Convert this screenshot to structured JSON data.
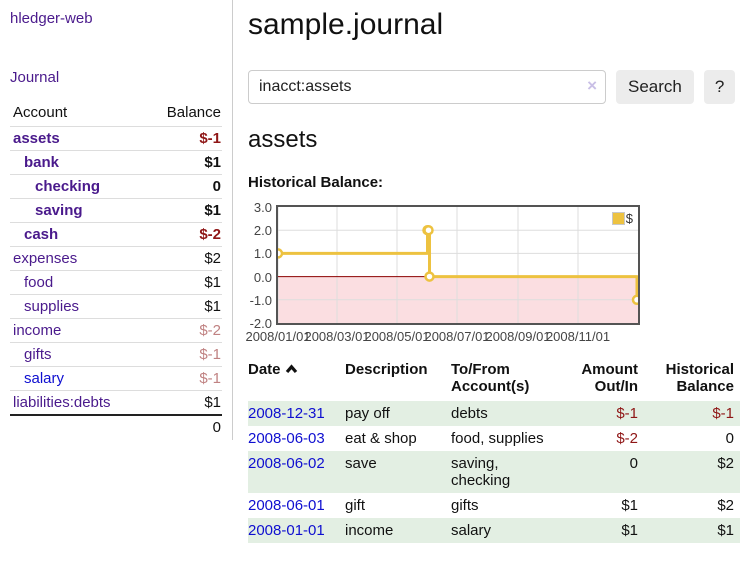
{
  "colors": {
    "accent_purple": "#4a1a8c",
    "link_blue": "#0f0fd0",
    "negative_red": "#8f1616",
    "negative_muted": "#c08282",
    "row_green": "#e3efe3",
    "chart_gold": "#edc240",
    "chart_negative_fill": "#fbdee1",
    "chart_zero_line": "#8b0000",
    "gridline": "#dddddd"
  },
  "sidebar": {
    "brand": "hledger-web",
    "nav_journal": "Journal",
    "accounts": {
      "header": {
        "account": "Account",
        "balance": "Balance"
      },
      "rows": [
        {
          "name": "assets",
          "balance": "$-1"
        },
        {
          "name": "bank",
          "balance": "$1"
        },
        {
          "name": "checking",
          "balance": "0"
        },
        {
          "name": "saving",
          "balance": "$1"
        },
        {
          "name": "cash",
          "balance": "$-2"
        },
        {
          "name": "expenses",
          "balance": "$2"
        },
        {
          "name": "food",
          "balance": "$1"
        },
        {
          "name": "supplies",
          "balance": "$1"
        },
        {
          "name": "income",
          "balance": "$-2"
        },
        {
          "name": "gifts",
          "balance": "$-1"
        },
        {
          "name": "salary",
          "balance": "$-1"
        },
        {
          "name": "liabilities:debts",
          "balance": "$1"
        }
      ],
      "total": "0"
    }
  },
  "main": {
    "title": "sample.journal",
    "search": {
      "value": "inacct:assets",
      "clear_icon": "×",
      "button_label": "Search",
      "help_label": "?"
    },
    "account_heading": "assets",
    "chart_label": "Historical Balance:"
  },
  "chart_data": {
    "type": "line",
    "step": true,
    "title": "Historical Balance",
    "series": [
      {
        "name": "$",
        "color": "#edc240",
        "points": [
          [
            "2008-01-01",
            1
          ],
          [
            "2008-06-01",
            2
          ],
          [
            "2008-06-02",
            2
          ],
          [
            "2008-06-03",
            0
          ],
          [
            "2008-12-31",
            -1
          ]
        ]
      }
    ],
    "xrange": [
      "2008-01-01",
      "2009-01-01"
    ],
    "ylim": [
      -2,
      3
    ],
    "yticks": [
      3,
      2,
      1,
      0,
      -1,
      -2
    ],
    "ytick_labels": [
      "3.0",
      "2.0",
      "1.0",
      "0.0",
      "-1.0",
      "-2.0"
    ],
    "xticks": [
      "2008-01-01",
      "2008-03-01",
      "2008-05-01",
      "2008-07-01",
      "2008-09-01",
      "2008-11-01"
    ],
    "xtick_labels": [
      "2008/01/01",
      "2008/03/01",
      "2008/05/01",
      "2008/07/01",
      "2008/09/01",
      "2008/11/01"
    ],
    "legend_position": "top-right",
    "grid": true
  },
  "register": {
    "headers": {
      "date": "Date",
      "description": "Description",
      "accounts": "To/From Account(s)",
      "amount": "Amount Out/In",
      "balance": "Historical Balance"
    },
    "rows": [
      {
        "date": "2008-12-31",
        "description": "pay off",
        "accounts": "debts",
        "amount": "$-1",
        "balance": "$-1"
      },
      {
        "date": "2008-06-03",
        "description": "eat & shop",
        "accounts": "food, supplies",
        "amount": "$-2",
        "balance": "0"
      },
      {
        "date": "2008-06-02",
        "description": "save",
        "accounts": "saving, checking",
        "amount": "0",
        "balance": "$2"
      },
      {
        "date": "2008-06-01",
        "description": "gift",
        "accounts": "gifts",
        "amount": "$1",
        "balance": "$2"
      },
      {
        "date": "2008-01-01",
        "description": "income",
        "accounts": "salary",
        "amount": "$1",
        "balance": "$1"
      }
    ]
  }
}
